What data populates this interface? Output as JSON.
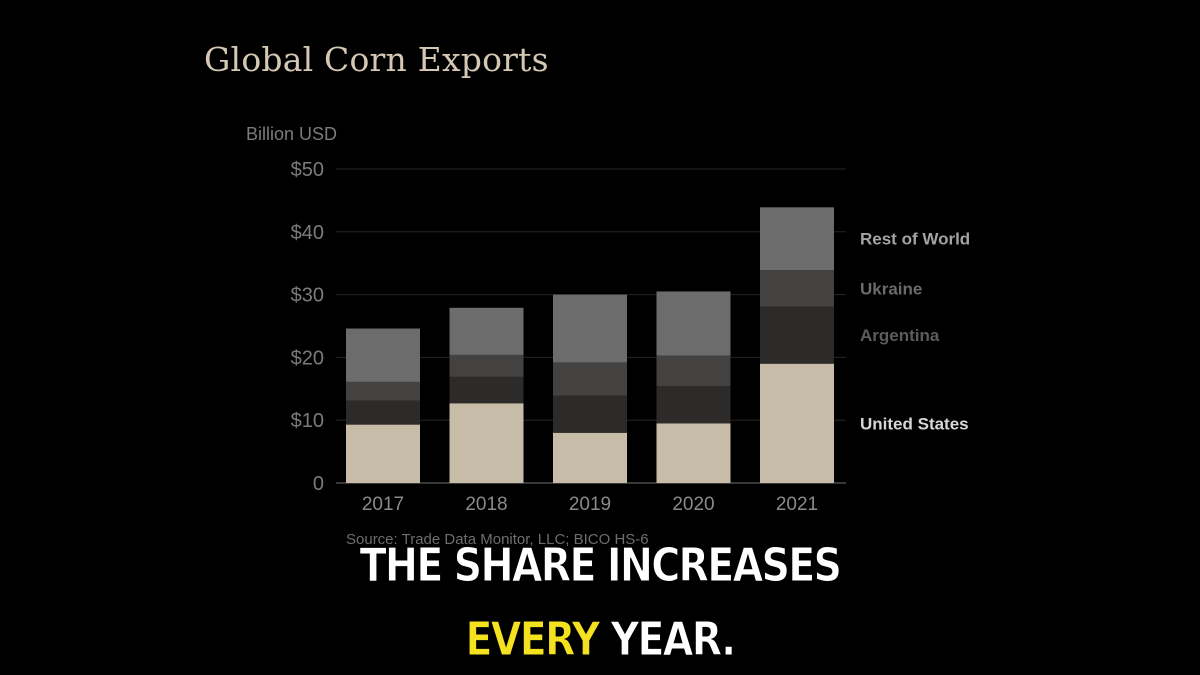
{
  "chart_data": {
    "type": "bar",
    "stacked": true,
    "title": "Global Corn Exports",
    "ylabel": "Billion USD",
    "xlabel": "",
    "ylim": [
      0,
      50
    ],
    "y_ticks": [
      0,
      10,
      20,
      30,
      40,
      50
    ],
    "y_tick_labels": [
      "0",
      "$10",
      "$20",
      "$30",
      "$40",
      "$50"
    ],
    "grid": true,
    "legend_placement": "right, labels aligned to last bar segments",
    "categories": [
      "2017",
      "2018",
      "2019",
      "2020",
      "2021"
    ],
    "series": [
      {
        "name": "United States",
        "color": "#c7bca8",
        "label_color": "#d6d6d6",
        "values": [
          9.3,
          12.7,
          8.0,
          9.5,
          19.0
        ]
      },
      {
        "name": "Argentina",
        "color": "#2d2b29",
        "label_color": "#5c5c5c",
        "values": [
          3.8,
          4.2,
          5.9,
          5.9,
          9.1
        ]
      },
      {
        "name": "Ukraine",
        "color": "#434241",
        "label_color": "#6a6a6a",
        "values": [
          3.0,
          3.5,
          5.3,
          4.9,
          5.8
        ]
      },
      {
        "name": "Rest of World",
        "color": "#6c6c6c",
        "label_color": "#a3a3a3",
        "values": [
          8.5,
          7.5,
          10.8,
          10.2,
          10.0
        ]
      }
    ],
    "source": "Source: Trade Data Monitor, LLC; BICO HS-6"
  },
  "caption": {
    "line1": "THE SHARE INCREASES",
    "line2_highlight": "EVERY",
    "line2_rest": " YEAR."
  }
}
